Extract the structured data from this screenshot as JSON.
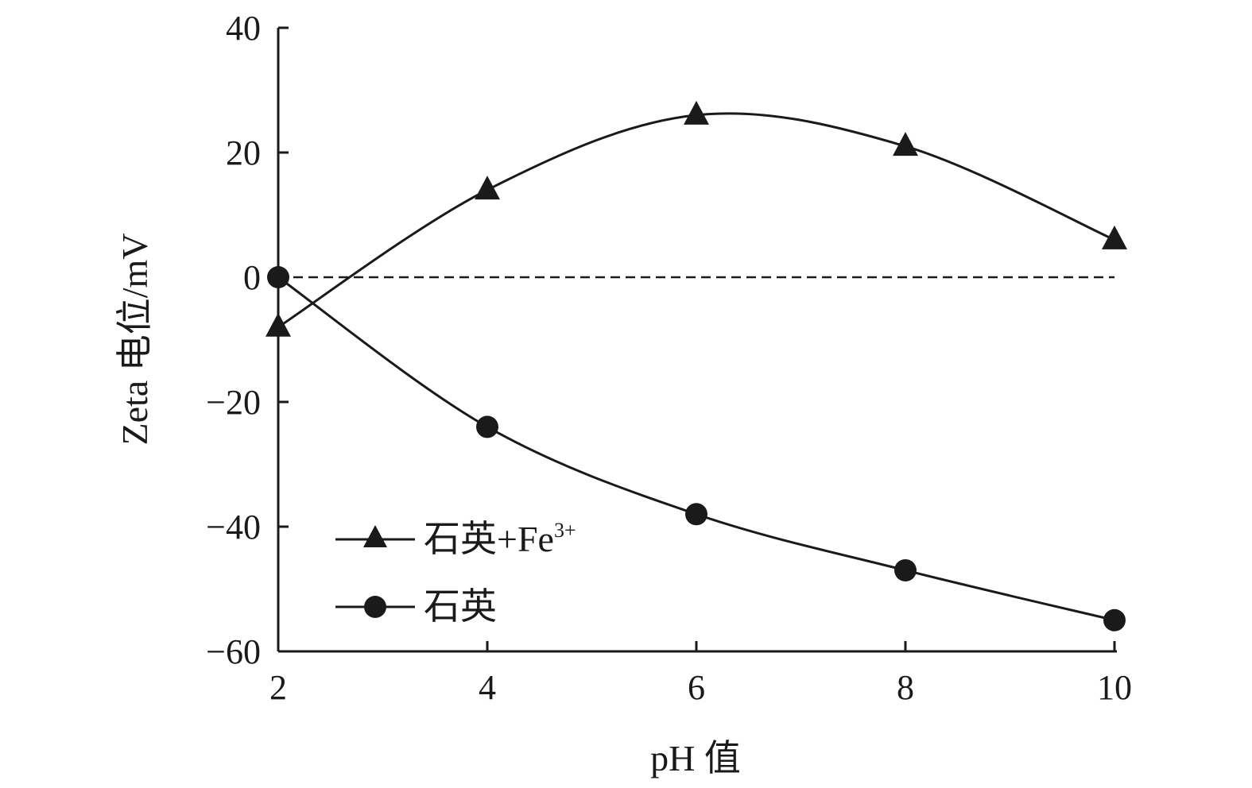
{
  "chart_data": {
    "type": "line",
    "title": "",
    "xlabel": "pH 值",
    "ylabel": "Zeta 电位/mV",
    "x": [
      2,
      4,
      6,
      8,
      10
    ],
    "xlim": [
      2,
      10
    ],
    "ylim": [
      -60,
      40
    ],
    "xticks": [
      "2",
      "4",
      "6",
      "8",
      "10"
    ],
    "yticks": [
      "40",
      "20",
      "0",
      "−20",
      "−40",
      "−60"
    ],
    "reference_line": {
      "y": 0,
      "style": "dashed"
    },
    "grid": false,
    "legend_position": "lower-left",
    "series": [
      {
        "name": "石英+Fe",
        "name_superscript": "3+",
        "marker": "triangle",
        "values": [
          -8,
          14,
          26,
          21,
          6
        ]
      },
      {
        "name": "石英",
        "marker": "circle",
        "values": [
          0,
          -24,
          -38,
          -47,
          -55
        ]
      }
    ],
    "colors": {
      "line": "#1a1a1a",
      "marker": "#1a1a1a"
    }
  }
}
